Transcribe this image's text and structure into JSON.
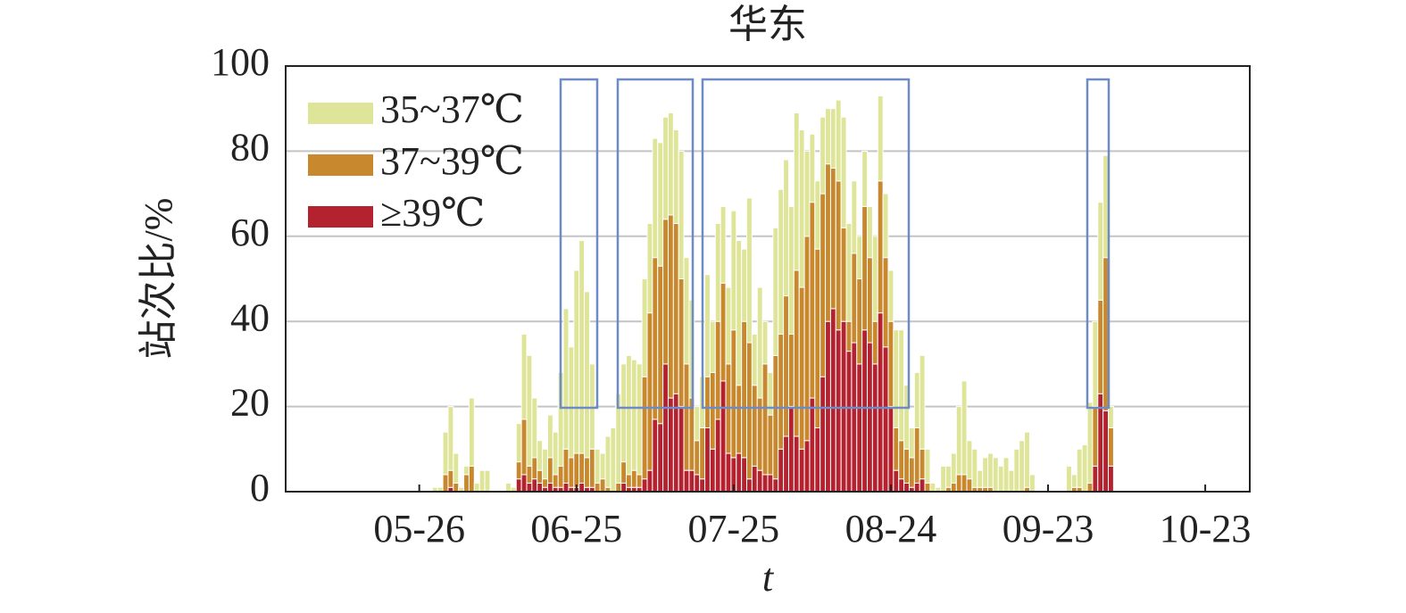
{
  "chart_data": {
    "type": "stacked_bar",
    "title": "华东",
    "x_label": "t",
    "y_label": "站次比/%",
    "categories": [
      null,
      null,
      null,
      null,
      null,
      null,
      null,
      null,
      null,
      null,
      null,
      null,
      null,
      null,
      null,
      null,
      null,
      null,
      null,
      null,
      null,
      null,
      null,
      null,
      null,
      "05-26",
      null,
      null,
      null,
      null,
      null,
      null,
      null,
      null,
      null,
      null,
      null,
      null,
      null,
      null,
      null,
      null,
      null,
      null,
      null,
      null,
      null,
      null,
      null,
      null,
      null,
      null,
      null,
      null,
      null,
      "06-25",
      null,
      null,
      null,
      null,
      null,
      null,
      null,
      null,
      null,
      null,
      null,
      null,
      null,
      null,
      null,
      null,
      null,
      null,
      null,
      null,
      null,
      null,
      null,
      null,
      null,
      null,
      null,
      null,
      null,
      "07-25",
      null,
      null,
      null,
      null,
      null,
      null,
      null,
      null,
      null,
      null,
      null,
      null,
      null,
      null,
      null,
      null,
      null,
      null,
      null,
      null,
      null,
      null,
      null,
      null,
      null,
      null,
      null,
      null,
      null,
      "08-24",
      null,
      null,
      null,
      null,
      null,
      null,
      null,
      null,
      null,
      null,
      null,
      null,
      null,
      null,
      null,
      null,
      null,
      null,
      null,
      null,
      null,
      null,
      null,
      null,
      null,
      null,
      null,
      null,
      null,
      "09-23",
      null,
      null,
      null,
      null,
      null,
      null,
      null,
      null,
      null,
      null,
      null,
      null,
      null,
      null,
      null,
      null,
      null,
      null,
      null,
      null,
      null,
      null,
      null,
      null,
      null,
      null,
      null,
      null,
      null,
      "10-23",
      null,
      null,
      null,
      null,
      null,
      null,
      null,
      null
    ],
    "series": [
      {
        "name": "35~37℃",
        "color": "#dfe598",
        "values": [
          0,
          0,
          0,
          0,
          0,
          0,
          0,
          0,
          0,
          0,
          0,
          0,
          0,
          0,
          0,
          0,
          0,
          0,
          0,
          0,
          0,
          0,
          0,
          0,
          0,
          0,
          0,
          0,
          1,
          1,
          10,
          15,
          7,
          1,
          2,
          16,
          2,
          5,
          5,
          0,
          0,
          0,
          2,
          1,
          9,
          20,
          26,
          14,
          7,
          7,
          10,
          10,
          22,
          33,
          26,
          43,
          50,
          39,
          20,
          8,
          6,
          12,
          15,
          21,
          23,
          28,
          26,
          26,
          23,
          21,
          28,
          29,
          24,
          24,
          22,
          30,
          25,
          23,
          8,
          12,
          24,
          12,
          23,
          18,
          18,
          28,
          34,
          17,
          34,
          12,
          26,
          10,
          10,
          30,
          34,
          32,
          30,
          37,
          37,
          20,
          16,
          16,
          18,
          13,
          14,
          19,
          26,
          23,
          17,
          10,
          13,
          12,
          20,
          20,
          15,
          12,
          23,
          26,
          15,
          7,
          13,
          22,
          8,
          2,
          1,
          6,
          5,
          7,
          16,
          22,
          9,
          9,
          4,
          7,
          8,
          8,
          6,
          8,
          5,
          10,
          12,
          13,
          4,
          0,
          0,
          0,
          0,
          0,
          0,
          6,
          3,
          9,
          11,
          19,
          20,
          23,
          24,
          5,
          0,
          0,
          0,
          0,
          0,
          0,
          0,
          0,
          0,
          0,
          0,
          0,
          0,
          0,
          0,
          0,
          0,
          0,
          0,
          0,
          0,
          0,
          0,
          0,
          0,
          0
        ]
      },
      {
        "name": "37~39℃",
        "color": "#c8882e",
        "values": [
          0,
          0,
          0,
          0,
          0,
          0,
          0,
          0,
          0,
          0,
          0,
          0,
          0,
          0,
          0,
          0,
          0,
          0,
          0,
          0,
          0,
          0,
          0,
          0,
          0,
          0,
          0,
          0,
          0,
          0,
          4,
          4,
          2,
          0,
          4,
          6,
          0,
          0,
          0,
          0,
          0,
          0,
          0,
          0,
          4,
          13,
          4,
          5,
          3,
          2,
          6,
          3,
          5,
          8,
          7,
          8,
          7,
          7,
          9,
          2,
          3,
          1,
          0,
          2,
          5,
          3,
          4,
          3,
          24,
          37,
          38,
          37,
          34,
          43,
          40,
          30,
          25,
          17,
          8,
          12,
          12,
          18,
          23,
          23,
          21,
          30,
          16,
          32,
          32,
          19,
          17,
          26,
          14,
          29,
          27,
          33,
          17,
          39,
          38,
          48,
          46,
          42,
          43,
          37,
          33,
          35,
          22,
          7,
          21,
          20,
          29,
          20,
          10,
          31,
          21,
          20,
          10,
          9,
          8,
          7,
          13,
          7,
          2,
          0,
          0,
          0,
          1,
          2,
          4,
          4,
          3,
          1,
          1,
          1,
          1,
          0,
          0,
          0,
          0,
          0,
          0,
          1,
          0,
          0,
          0,
          0,
          0,
          0,
          0,
          0,
          1,
          1,
          0,
          2,
          14,
          22,
          36,
          9,
          0,
          0,
          0,
          0,
          0,
          0,
          0,
          0,
          0,
          0,
          0,
          0,
          0,
          0,
          0,
          0,
          0,
          0,
          0,
          0,
          0,
          0,
          0,
          0,
          0,
          0
        ]
      },
      {
        "name": "≥39℃",
        "color": "#b5222f",
        "values": [
          0,
          0,
          0,
          0,
          0,
          0,
          0,
          0,
          0,
          0,
          0,
          0,
          0,
          0,
          0,
          0,
          0,
          0,
          0,
          0,
          0,
          0,
          0,
          0,
          0,
          0,
          0,
          0,
          0,
          0,
          0,
          1,
          0,
          0,
          0,
          0,
          0,
          0,
          0,
          0,
          0,
          0,
          0,
          0,
          3,
          4,
          2,
          3,
          2,
          1,
          2,
          1,
          1,
          2,
          1,
          1,
          2,
          1,
          1,
          0,
          0,
          0,
          0,
          0,
          2,
          1,
          1,
          1,
          3,
          5,
          17,
          16,
          30,
          22,
          23,
          20,
          5,
          5,
          4,
          3,
          15,
          10,
          17,
          26,
          9,
          8,
          9,
          8,
          3,
          6,
          5,
          4,
          4,
          3,
          10,
          13,
          20,
          13,
          10,
          12,
          22,
          15,
          27,
          40,
          43,
          38,
          40,
          33,
          35,
          30,
          38,
          35,
          30,
          42,
          34,
          20,
          5,
          3,
          2,
          1,
          2,
          3,
          0,
          0,
          0,
          0,
          0,
          0,
          0,
          0,
          0,
          0,
          0,
          0,
          0,
          0,
          0,
          0,
          0,
          0,
          0,
          0,
          0,
          0,
          0,
          0,
          0,
          0,
          0,
          0,
          0,
          0,
          0,
          0,
          6,
          23,
          19,
          6,
          0,
          0,
          0,
          0,
          0,
          0,
          0,
          0,
          0,
          0,
          0,
          0,
          0,
          0,
          0,
          0,
          0,
          0,
          0,
          0,
          0,
          0,
          0,
          0,
          0,
          0
        ]
      }
    ],
    "ylim": [
      0,
      100
    ],
    "yticks": [
      0,
      20,
      40,
      60,
      80,
      100
    ],
    "grid": true,
    "legend": "upper left"
  }
}
